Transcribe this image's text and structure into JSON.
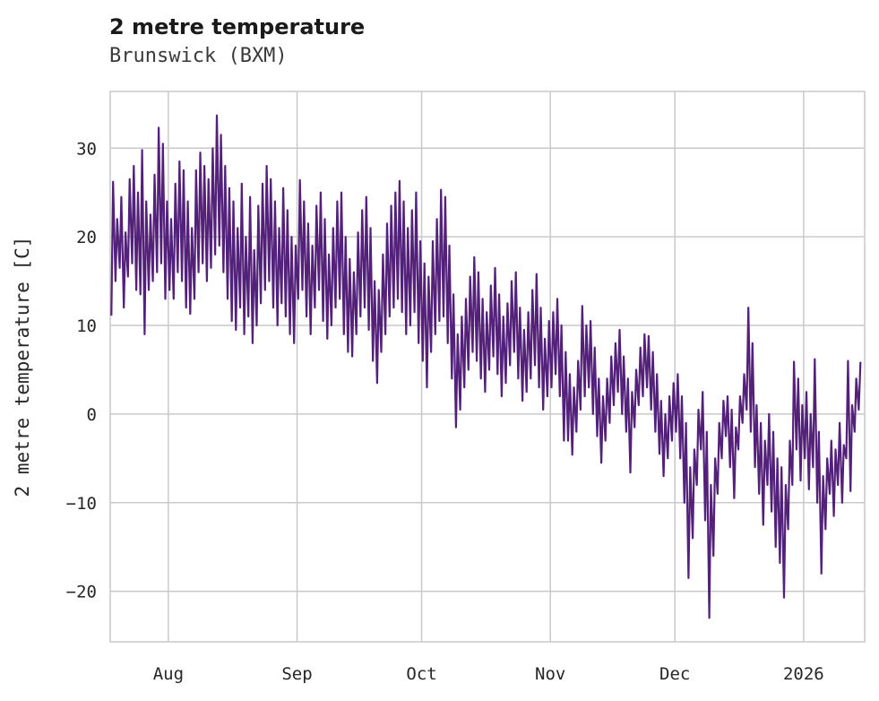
{
  "chart": {
    "title": "2 metre temperature",
    "subtitle": "Brunswick (BXM)"
  },
  "chart_data": {
    "type": "line",
    "title": "2 metre temperature",
    "subtitle": "Brunswick (BXM)",
    "xlabel": "",
    "ylabel": "2 metre temperature [C]",
    "grid": true,
    "legend": "none",
    "colors": {
      "line": "#54217a",
      "grid": "#c9c9c9",
      "text": "#262626",
      "title": "#1a1a1a",
      "subtitle": "#3a3a3a",
      "background": "#ffffff"
    },
    "ylim": [
      -25.7,
      36.4
    ],
    "xlim_days": [
      0,
      181.7
    ],
    "y_ticks": [
      {
        "value": 30,
        "label": "30"
      },
      {
        "value": 20,
        "label": "20"
      },
      {
        "value": 10,
        "label": "10"
      },
      {
        "value": 0,
        "label": "0"
      },
      {
        "value": -10,
        "label": "−10"
      },
      {
        "value": -20,
        "label": "−20"
      }
    ],
    "x_ticks": [
      {
        "day": 14,
        "label": "Aug"
      },
      {
        "day": 45,
        "label": "Sep"
      },
      {
        "day": 75,
        "label": "Oct"
      },
      {
        "day": 106,
        "label": "Nov"
      },
      {
        "day": 136,
        "label": "Dec"
      },
      {
        "day": 167,
        "label": "2026"
      }
    ],
    "series": [
      {
        "name": "2 metre temperature",
        "encoding": "daily [min,max] pairs, day 0 at left edge, 2 vertices per day",
        "daily_min_max": [
          [
            11.2,
            26.2
          ],
          [
            15,
            22
          ],
          [
            16.5,
            24.5
          ],
          [
            12,
            20.5
          ],
          [
            15.5,
            26.5
          ],
          [
            17,
            28
          ],
          [
            14,
            25
          ],
          [
            13.5,
            29.8
          ],
          [
            9,
            24
          ],
          [
            14,
            22.5
          ],
          [
            15,
            27
          ],
          [
            16,
            32.3
          ],
          [
            17,
            30.5
          ],
          [
            13,
            24
          ],
          [
            14,
            22
          ],
          [
            13,
            26
          ],
          [
            16,
            28.5
          ],
          [
            15,
            27.5
          ],
          [
            12,
            24
          ],
          [
            11.3,
            21
          ],
          [
            13,
            27.5
          ],
          [
            16,
            29.5
          ],
          [
            17,
            28
          ],
          [
            15,
            26.5
          ],
          [
            16.5,
            30
          ],
          [
            18,
            33.7
          ],
          [
            19,
            31.5
          ],
          [
            16,
            28
          ],
          [
            13,
            25.5
          ],
          [
            10.5,
            24
          ],
          [
            9.5,
            21
          ],
          [
            12,
            26
          ],
          [
            9,
            20
          ],
          [
            11,
            24.5
          ],
          [
            8,
            18.5
          ],
          [
            10,
            23.5
          ],
          [
            12.5,
            26
          ],
          [
            14,
            28
          ],
          [
            15,
            26.5
          ],
          [
            12,
            24
          ],
          [
            10,
            21
          ],
          [
            12.5,
            25.5
          ],
          [
            11,
            23
          ],
          [
            9,
            20
          ],
          [
            8,
            19
          ],
          [
            13,
            26.4
          ],
          [
            14,
            24
          ],
          [
            11,
            21.5
          ],
          [
            9,
            19
          ],
          [
            12,
            23.5
          ],
          [
            14,
            25
          ],
          [
            10.5,
            22
          ],
          [
            8.5,
            18
          ],
          [
            10,
            21
          ],
          [
            12,
            24
          ],
          [
            13,
            25
          ],
          [
            9,
            20
          ],
          [
            7,
            17.5
          ],
          [
            6.5,
            16
          ],
          [
            9,
            20.5
          ],
          [
            11,
            23
          ],
          [
            12,
            24.5
          ],
          [
            9.5,
            21
          ],
          [
            6,
            15
          ],
          [
            3.5,
            14
          ],
          [
            7,
            18
          ],
          [
            9,
            21.5
          ],
          [
            11,
            23.5
          ],
          [
            12,
            25
          ],
          [
            13,
            26.3
          ],
          [
            11.5,
            24
          ],
          [
            9,
            21
          ],
          [
            10,
            23
          ],
          [
            11.5,
            25
          ],
          [
            8,
            19.5
          ],
          [
            6,
            17
          ],
          [
            3,
            15.5
          ],
          [
            7,
            19.5
          ],
          [
            9,
            22
          ],
          [
            10.5,
            25.3
          ],
          [
            11,
            24.5
          ],
          [
            8,
            19
          ],
          [
            4,
            13.5
          ],
          [
            -1.5,
            9
          ],
          [
            0.5,
            11
          ],
          [
            3,
            13
          ],
          [
            5,
            15.5
          ],
          [
            7,
            17.7
          ],
          [
            6,
            16
          ],
          [
            4,
            13
          ],
          [
            2.5,
            11.5
          ],
          [
            5,
            14.5
          ],
          [
            6.5,
            16.5
          ],
          [
            4.5,
            13.5
          ],
          [
            2,
            11
          ],
          [
            3.5,
            12.5
          ],
          [
            5.5,
            15
          ],
          [
            7,
            16
          ],
          [
            4,
            12
          ],
          [
            1.5,
            9.5
          ],
          [
            2.5,
            11.5
          ],
          [
            4,
            14
          ],
          [
            5.5,
            15.8
          ],
          [
            3,
            12
          ],
          [
            0.5,
            8.5
          ],
          [
            2,
            10.5
          ],
          [
            3,
            11.5
          ],
          [
            4.5,
            13
          ],
          [
            2,
            10
          ],
          [
            -3,
            7
          ],
          [
            -3,
            4.5
          ],
          [
            -4.6,
            3
          ],
          [
            -2,
            6
          ],
          [
            0.5,
            12.2
          ],
          [
            2,
            10
          ],
          [
            3,
            10.5
          ],
          [
            0,
            7.5
          ],
          [
            -2.5,
            4
          ],
          [
            -5.5,
            2
          ],
          [
            -3,
            4
          ],
          [
            -1,
            6.5
          ],
          [
            1,
            8
          ],
          [
            2.5,
            9.5
          ],
          [
            0,
            6.5
          ],
          [
            -2,
            4
          ],
          [
            -6.6,
            2.5
          ],
          [
            -1.5,
            5
          ],
          [
            1,
            7.5
          ],
          [
            2,
            9
          ],
          [
            3,
            8.8
          ],
          [
            0.5,
            7
          ],
          [
            -2,
            4.5
          ],
          [
            -4.5,
            1.5
          ],
          [
            -7,
            0
          ],
          [
            -5,
            2
          ],
          [
            -3,
            3.5
          ],
          [
            -2,
            4.5
          ],
          [
            -5,
            2
          ],
          [
            -10,
            -1
          ],
          [
            -18.5,
            -6
          ],
          [
            -14,
            -4
          ],
          [
            -8,
            0.5
          ],
          [
            -4,
            2.5
          ],
          [
            -12,
            -2
          ],
          [
            -23,
            -8
          ],
          [
            -16,
            -5
          ],
          [
            -9,
            -1
          ],
          [
            -5,
            1.5
          ],
          [
            -2.5,
            2
          ],
          [
            -6,
            0.5
          ],
          [
            -9.5,
            -1.5
          ],
          [
            -4,
            2
          ],
          [
            -1,
            4.5
          ],
          [
            0.5,
            12
          ],
          [
            -2,
            8
          ],
          [
            -6,
            1
          ],
          [
            -9,
            -1
          ],
          [
            -12.5,
            -3
          ],
          [
            -8,
            0
          ],
          [
            -11,
            -2
          ],
          [
            -15,
            -5
          ],
          [
            -16.8,
            -6
          ],
          [
            -20.7,
            -8
          ],
          [
            -13,
            -3
          ],
          [
            -8,
            5.9
          ],
          [
            -4,
            4
          ],
          [
            -7.5,
            1
          ],
          [
            -5,
            2.5
          ],
          [
            -8.5,
            0
          ],
          [
            -6,
            6.2
          ],
          [
            -10,
            -2
          ],
          [
            -18,
            -7
          ],
          [
            -13,
            -5
          ],
          [
            -9,
            -3
          ],
          [
            -11.5,
            -4
          ],
          [
            -8,
            -1
          ],
          [
            -10,
            -3.5
          ],
          [
            -5,
            6
          ],
          [
            -8.7,
            1
          ],
          [
            -2,
            4
          ],
          [
            0.5,
            5.8
          ]
        ]
      }
    ]
  }
}
